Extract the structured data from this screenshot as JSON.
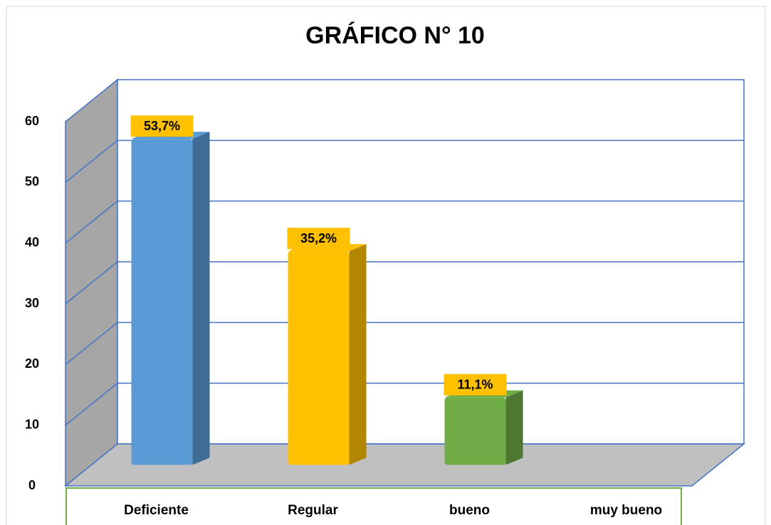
{
  "chart_data": {
    "type": "bar3d",
    "title": "GRÁFICO N° 10",
    "categories": [
      "Deficiente",
      "Regular",
      "bueno",
      "muy bueno"
    ],
    "values": [
      53.7,
      35.2,
      11.1,
      0
    ],
    "value_labels": [
      "53,7%",
      "35,2%",
      "11,1%",
      null
    ],
    "colors": [
      "#5b9bd5",
      "#ffc000",
      "#70ad47",
      "#a5a5a5"
    ],
    "ylim": [
      0,
      60
    ],
    "yticks": [
      0,
      10,
      20,
      30,
      40,
      50,
      60
    ],
    "grid": true
  }
}
